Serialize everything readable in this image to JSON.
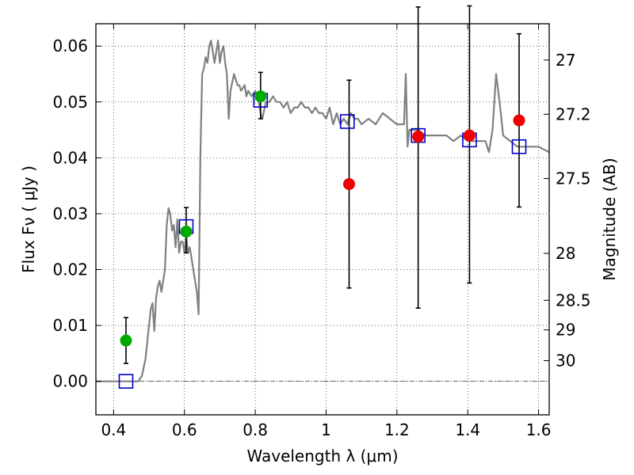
{
  "chart_data": {
    "type": "scatter",
    "xlabel": "Wavelength  λ (μm)",
    "ylabel": "Flux  Fν  ( μJy )",
    "y2label": "Magnitude (AB)",
    "xlim": [
      0.35,
      1.63
    ],
    "ylim": [
      -0.006,
      0.064
    ],
    "grid": true,
    "x_ticks": [
      0.4,
      0.6,
      0.8,
      1.0,
      1.2,
      1.4,
      1.6
    ],
    "x_tick_labels": [
      "0.4",
      "0.6",
      "0.8",
      "1",
      "1.2",
      "1.4",
      "1.6"
    ],
    "y_ticks": [
      0.0,
      0.01,
      0.02,
      0.03,
      0.04,
      0.05,
      0.06
    ],
    "y_tick_labels": [
      "0.00",
      "0.01",
      "0.02",
      "0.03",
      "0.04",
      "0.05",
      "0.06"
    ],
    "y2_ticks": [
      {
        "label": "27",
        "flux": 0.0575
      },
      {
        "label": "27.2",
        "flux": 0.0478
      },
      {
        "label": "27.5",
        "flux": 0.0363
      },
      {
        "label": "28",
        "flux": 0.0229
      },
      {
        "label": "28.5",
        "flux": 0.0145
      },
      {
        "label": "29",
        "flux": 0.0092
      },
      {
        "label": "30",
        "flux": 0.0037
      }
    ],
    "zero_line": 0.0,
    "model_spectrum": {
      "color": "#808080",
      "x": [
        0.35,
        0.4,
        0.45,
        0.47,
        0.48,
        0.49,
        0.5,
        0.505,
        0.51,
        0.515,
        0.52,
        0.525,
        0.53,
        0.535,
        0.54,
        0.545,
        0.55,
        0.555,
        0.56,
        0.565,
        0.57,
        0.575,
        0.58,
        0.585,
        0.59,
        0.595,
        0.6,
        0.605,
        0.61,
        0.615,
        0.62,
        0.625,
        0.63,
        0.635,
        0.64,
        0.645,
        0.65,
        0.655,
        0.66,
        0.665,
        0.67,
        0.675,
        0.68,
        0.685,
        0.69,
        0.695,
        0.7,
        0.705,
        0.71,
        0.715,
        0.72,
        0.725,
        0.73,
        0.74,
        0.745,
        0.75,
        0.755,
        0.76,
        0.77,
        0.775,
        0.78,
        0.79,
        0.8,
        0.81,
        0.815,
        0.82,
        0.83,
        0.84,
        0.85,
        0.86,
        0.87,
        0.88,
        0.89,
        0.9,
        0.91,
        0.92,
        0.93,
        0.94,
        0.95,
        0.96,
        0.97,
        0.98,
        0.99,
        1.0,
        1.01,
        1.02,
        1.03,
        1.04,
        1.05,
        1.06,
        1.07,
        1.08,
        1.09,
        1.1,
        1.12,
        1.14,
        1.16,
        1.18,
        1.2,
        1.22,
        1.225,
        1.23,
        1.235,
        1.24,
        1.26,
        1.28,
        1.3,
        1.32,
        1.34,
        1.36,
        1.38,
        1.4,
        1.42,
        1.43,
        1.44,
        1.45,
        1.46,
        1.47,
        1.48,
        1.49,
        1.5,
        1.52,
        1.54,
        1.56,
        1.58,
        1.6,
        1.63
      ],
      "y": [
        0.0,
        0.0,
        0.0,
        0.0,
        0.001,
        0.004,
        0.01,
        0.013,
        0.014,
        0.009,
        0.015,
        0.017,
        0.018,
        0.016,
        0.018,
        0.02,
        0.028,
        0.031,
        0.03,
        0.027,
        0.028,
        0.024,
        0.029,
        0.023,
        0.025,
        0.025,
        0.023,
        0.026,
        0.023,
        0.024,
        0.022,
        0.02,
        0.018,
        0.016,
        0.012,
        0.04,
        0.055,
        0.056,
        0.058,
        0.057,
        0.06,
        0.061,
        0.059,
        0.057,
        0.059,
        0.061,
        0.057,
        0.059,
        0.06,
        0.057,
        0.055,
        0.047,
        0.052,
        0.055,
        0.054,
        0.053,
        0.053,
        0.052,
        0.053,
        0.051,
        0.052,
        0.051,
        0.052,
        0.05,
        0.048,
        0.047,
        0.05,
        0.05,
        0.051,
        0.05,
        0.05,
        0.049,
        0.05,
        0.048,
        0.049,
        0.049,
        0.05,
        0.049,
        0.049,
        0.048,
        0.049,
        0.048,
        0.048,
        0.047,
        0.049,
        0.046,
        0.048,
        0.046,
        0.047,
        0.046,
        0.048,
        0.047,
        0.047,
        0.046,
        0.047,
        0.046,
        0.048,
        0.047,
        0.046,
        0.046,
        0.055,
        0.042,
        0.045,
        0.045,
        0.045,
        0.044,
        0.044,
        0.044,
        0.044,
        0.043,
        0.044,
        0.043,
        0.043,
        0.043,
        0.043,
        0.043,
        0.041,
        0.045,
        0.055,
        0.05,
        0.044,
        0.043,
        0.042,
        0.042,
        0.042,
        0.042,
        0.041
      ]
    },
    "series": [
      {
        "marker": "open-square",
        "color": "#0000cc",
        "x": [
          0.435,
          0.605,
          0.815,
          1.06,
          1.26,
          1.405,
          1.545
        ],
        "y": [
          0.0,
          0.0277,
          0.0503,
          0.0465,
          0.044,
          0.0432,
          0.042
        ]
      },
      {
        "marker": "filled-circle",
        "color": "#00aa00",
        "x": [
          0.435,
          0.605,
          0.815
        ],
        "y": [
          0.0073,
          0.0268,
          0.051
        ],
        "yerr_low": [
          0.0041,
          0.0038,
          0.004
        ],
        "yerr_high": [
          0.0041,
          0.0043,
          0.0043
        ]
      },
      {
        "marker": "filled-circle",
        "color": "#ee0000",
        "x": [
          1.065,
          1.26,
          1.405,
          1.545
        ],
        "y": [
          0.0353,
          0.0438,
          0.044,
          0.0467
        ],
        "yerr_low": [
          0.0186,
          0.0307,
          0.0264,
          0.0155
        ],
        "yerr_high": [
          0.0186,
          0.0232,
          0.0232,
          0.0155
        ]
      }
    ]
  }
}
